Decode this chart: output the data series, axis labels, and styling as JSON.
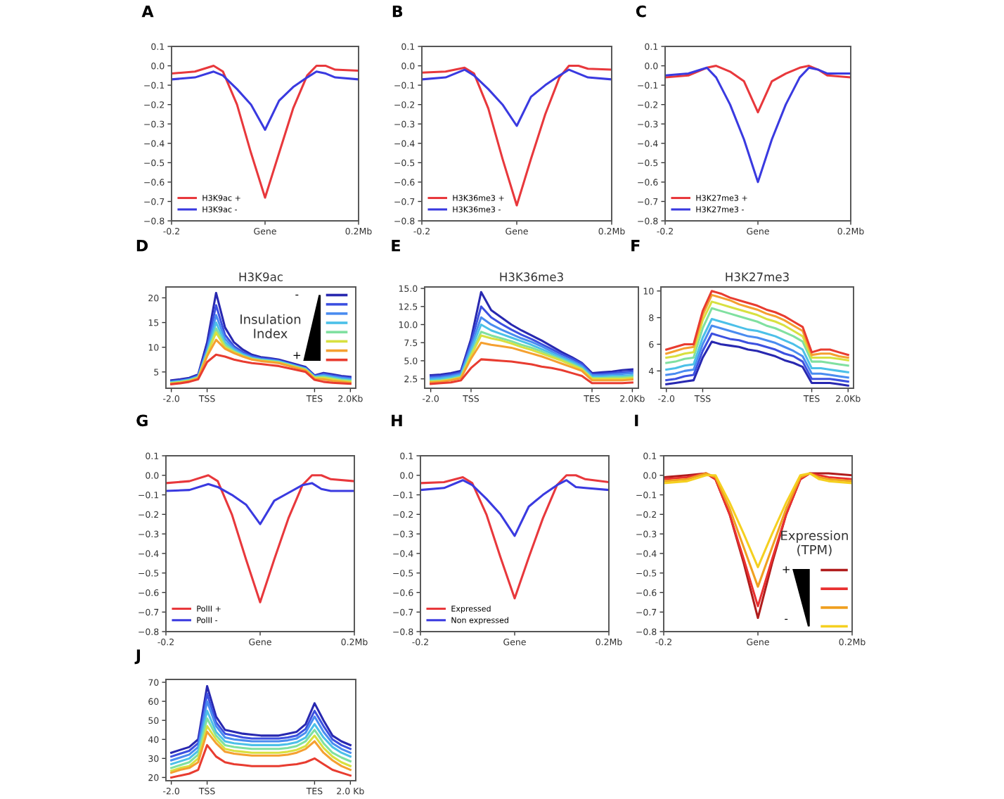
{
  "chart_data": [
    {
      "type": "line",
      "annotations": [
        "A"
      ],
      "legend": "lower left",
      "xlim": [
        -0.2,
        0.2
      ],
      "xticks": [
        {
          "value": -0.2,
          "label": "-0.2"
        },
        {
          "value": 0,
          "label": "Gene"
        },
        {
          "value": 0.2,
          "label": "0.2Mb"
        }
      ],
      "ylim": [
        -0.8,
        0.1
      ],
      "yticks": [
        {
          "value": 0.1,
          "label": "0.1"
        },
        {
          "value": 0,
          "label": "0.0"
        },
        {
          "value": -0.1,
          "label": "−0.1"
        },
        {
          "value": -0.2,
          "label": "−0.2"
        },
        {
          "value": -0.3,
          "label": "−0.3"
        },
        {
          "value": -0.4,
          "label": "−0.4"
        },
        {
          "value": -0.5,
          "label": "−0.5"
        },
        {
          "value": -0.6,
          "label": "−0.6"
        },
        {
          "value": -0.7,
          "label": "−0.7"
        },
        {
          "value": -0.8,
          "label": "−0.8"
        }
      ],
      "x": [
        -0.2,
        -0.15,
        -0.11,
        -0.09,
        -0.06,
        -0.03,
        0,
        0.03,
        0.06,
        0.09,
        0.11,
        0.13,
        0.15,
        0.2
      ],
      "series": [
        {
          "name": "H3K9ac +",
          "color": "#e8383c",
          "values": [
            -0.04,
            -0.03,
            0.0,
            -0.03,
            -0.2,
            -0.45,
            -0.68,
            -0.45,
            -0.22,
            -0.05,
            0.0,
            0.0,
            -0.02,
            -0.025
          ]
        },
        {
          "name": "H3K9ac -",
          "color": "#3a3ae0",
          "values": [
            -0.07,
            -0.06,
            -0.03,
            -0.05,
            -0.12,
            -0.2,
            -0.33,
            -0.18,
            -0.11,
            -0.06,
            -0.03,
            -0.04,
            -0.06,
            -0.07
          ]
        }
      ]
    },
    {
      "type": "line",
      "annotations": [
        "B"
      ],
      "legend": "lower left",
      "xlim": [
        -0.2,
        0.2
      ],
      "xticks": [
        {
          "value": -0.2,
          "label": "-0.2"
        },
        {
          "value": 0,
          "label": "Gene"
        },
        {
          "value": 0.2,
          "label": "0.2Mb"
        }
      ],
      "ylim": [
        -0.8,
        0.1
      ],
      "yticks": [
        {
          "value": 0.1,
          "label": "0.1"
        },
        {
          "value": 0,
          "label": "0.0"
        },
        {
          "value": -0.1,
          "label": "−0.1"
        },
        {
          "value": -0.2,
          "label": "−0.2"
        },
        {
          "value": -0.3,
          "label": "−0.3"
        },
        {
          "value": -0.4,
          "label": "−0.4"
        },
        {
          "value": -0.5,
          "label": "−0.5"
        },
        {
          "value": -0.6,
          "label": "−0.6"
        },
        {
          "value": -0.7,
          "label": "−0.7"
        },
        {
          "value": -0.8,
          "label": "−0.8"
        }
      ],
      "x": [
        -0.2,
        -0.15,
        -0.11,
        -0.09,
        -0.06,
        -0.03,
        0,
        0.03,
        0.06,
        0.09,
        0.11,
        0.13,
        0.15,
        0.2
      ],
      "series": [
        {
          "name": "H3K36me3 +",
          "color": "#e8383c",
          "values": [
            -0.035,
            -0.03,
            -0.01,
            -0.04,
            -0.22,
            -0.48,
            -0.72,
            -0.48,
            -0.25,
            -0.06,
            0.0,
            0.0,
            -0.015,
            -0.02
          ]
        },
        {
          "name": "H3K36me3 -",
          "color": "#3a3ae0",
          "values": [
            -0.07,
            -0.06,
            -0.02,
            -0.05,
            -0.12,
            -0.2,
            -0.31,
            -0.16,
            -0.1,
            -0.05,
            -0.02,
            -0.04,
            -0.06,
            -0.07
          ]
        }
      ]
    },
    {
      "type": "line",
      "annotations": [
        "C"
      ],
      "legend": "lower left",
      "xlim": [
        -0.2,
        0.2
      ],
      "xticks": [
        {
          "value": -0.2,
          "label": "-0.2"
        },
        {
          "value": 0,
          "label": "Gene"
        },
        {
          "value": 0.2,
          "label": "0.2Mb"
        }
      ],
      "ylim": [
        -0.8,
        0.1
      ],
      "yticks": [
        {
          "value": 0.1,
          "label": "0.1"
        },
        {
          "value": 0,
          "label": "0.0"
        },
        {
          "value": -0.1,
          "label": "−0.1"
        },
        {
          "value": -0.2,
          "label": "−0.2"
        },
        {
          "value": -0.3,
          "label": "−0.3"
        },
        {
          "value": -0.4,
          "label": "−0.4"
        },
        {
          "value": -0.5,
          "label": "−0.5"
        },
        {
          "value": -0.6,
          "label": "−0.6"
        },
        {
          "value": -0.7,
          "label": "−0.7"
        },
        {
          "value": -0.8,
          "label": "−0.8"
        }
      ],
      "x": [
        -0.2,
        -0.15,
        -0.11,
        -0.09,
        -0.06,
        -0.03,
        0,
        0.03,
        0.06,
        0.09,
        0.11,
        0.13,
        0.15,
        0.2
      ],
      "series": [
        {
          "name": "H3K27me3 +",
          "color": "#e8383c",
          "values": [
            -0.06,
            -0.05,
            -0.01,
            0.0,
            -0.03,
            -0.08,
            -0.24,
            -0.08,
            -0.04,
            -0.01,
            0.0,
            -0.02,
            -0.05,
            -0.06
          ]
        },
        {
          "name": "H3K27me3 -",
          "color": "#3a3ae0",
          "values": [
            -0.05,
            -0.04,
            -0.01,
            -0.06,
            -0.2,
            -0.38,
            -0.6,
            -0.38,
            -0.2,
            -0.06,
            -0.01,
            -0.02,
            -0.04,
            -0.04
          ]
        }
      ]
    },
    {
      "type": "line",
      "title": "H3K9ac",
      "annotations": [
        "D",
        "-",
        "+"
      ],
      "legend": "top right",
      "legend_title": "Insulation\nIndex",
      "ylim": [
        1.7,
        22.2
      ],
      "yticks": [
        5,
        10,
        15,
        20
      ],
      "categories": [
        "-2.0",
        null,
        null,
        null,
        "TSS",
        null,
        null,
        null,
        null,
        null,
        null,
        null,
        null,
        null,
        null,
        null,
        "TES",
        null,
        null,
        null,
        "2.0Kb"
      ],
      "series": [
        {
          "color": "#2828b0",
          "values": [
            3.3,
            3.5,
            3.8,
            4.5,
            11,
            21,
            14,
            11,
            9.5,
            8.5,
            8,
            7.8,
            7.5,
            7,
            6.5,
            6,
            4.3,
            4.8,
            4.5,
            4.2,
            4.0
          ]
        },
        {
          "color": "#3c50e0",
          "values": [
            3.1,
            3.3,
            3.6,
            4.3,
            10,
            18.5,
            12.5,
            10.2,
            9,
            8.2,
            7.8,
            7.6,
            7.3,
            6.8,
            6.3,
            5.8,
            4.2,
            4.6,
            4.3,
            4,
            3.8
          ]
        },
        {
          "color": "#4a8cf0",
          "values": [
            3.0,
            3.2,
            3.5,
            4.1,
            9.5,
            16.5,
            11.7,
            9.8,
            8.7,
            8,
            7.6,
            7.4,
            7.2,
            6.7,
            6.2,
            5.7,
            4.1,
            4.4,
            4.1,
            3.8,
            3.6
          ]
        },
        {
          "color": "#4cc0e8",
          "values": [
            2.9,
            3.1,
            3.4,
            4,
            9,
            15,
            11,
            9.5,
            8.5,
            7.8,
            7.5,
            7.3,
            7.1,
            6.6,
            6.1,
            5.6,
            4,
            4.2,
            3.9,
            3.6,
            3.4
          ]
        },
        {
          "color": "#80e0a0",
          "values": [
            2.8,
            3,
            3.3,
            3.9,
            8.7,
            13.8,
            10.5,
            9.2,
            8.3,
            7.7,
            7.4,
            7.2,
            7,
            6.5,
            6,
            5.5,
            3.9,
            4,
            3.7,
            3.4,
            3.2
          ]
        },
        {
          "color": "#d8e040",
          "values": [
            2.7,
            2.9,
            3.2,
            3.8,
            8.5,
            13,
            10,
            9,
            8.2,
            7.6,
            7.3,
            7.1,
            6.9,
            6.4,
            5.9,
            5.4,
            3.8,
            3.8,
            3.5,
            3.2,
            3.0
          ]
        },
        {
          "color": "#f5a030",
          "values": [
            2.6,
            2.8,
            3.1,
            3.7,
            8.2,
            11.5,
            9.7,
            8.8,
            8.1,
            7.5,
            7.2,
            7,
            6.8,
            6.3,
            5.8,
            5.3,
            3.6,
            3.5,
            3.2,
            3,
            2.8
          ]
        },
        {
          "color": "#e83c30",
          "values": [
            2.5,
            2.7,
            3,
            3.5,
            7,
            8.5,
            8.1,
            7.5,
            7.1,
            6.8,
            6.6,
            6.4,
            6.2,
            5.8,
            5.4,
            5,
            3.4,
            3,
            2.8,
            2.7,
            2.6
          ]
        }
      ]
    },
    {
      "type": "line",
      "title": "H3K36me3",
      "annotations": [
        "E"
      ],
      "ylim": [
        1.2,
        15.2
      ],
      "yticks": [
        {
          "value": 2.5,
          "label": "2.5"
        },
        {
          "value": 5,
          "label": "5.0"
        },
        {
          "value": 7.5,
          "label": "7.5"
        },
        {
          "value": 10,
          "label": "10.0"
        },
        {
          "value": 12.5,
          "label": "12.5"
        },
        {
          "value": 15,
          "label": "15.0"
        }
      ],
      "categories": [
        "-2.0",
        null,
        null,
        null,
        "TSS",
        null,
        null,
        null,
        null,
        null,
        null,
        null,
        null,
        null,
        null,
        null,
        "TES",
        null,
        null,
        null,
        "2.0Kb"
      ],
      "series": [
        {
          "color": "#2828b0",
          "values": [
            3,
            3.1,
            3.3,
            3.6,
            8,
            14.5,
            12,
            11,
            10,
            9.2,
            8.5,
            7.8,
            7,
            6.2,
            5.5,
            4.7,
            3.3,
            3.4,
            3.5,
            3.7,
            3.8
          ]
        },
        {
          "color": "#3c50e0",
          "values": [
            2.8,
            2.9,
            3.1,
            3.4,
            7.5,
            12.5,
            11,
            10.1,
            9.3,
            8.6,
            8,
            7.3,
            6.6,
            5.9,
            5.3,
            4.6,
            3.1,
            3.2,
            3.3,
            3.4,
            3.5
          ]
        },
        {
          "color": "#4a8cf0",
          "values": [
            2.6,
            2.7,
            2.9,
            3.2,
            7,
            11,
            10,
            9.3,
            8.7,
            8.1,
            7.6,
            7,
            6.3,
            5.6,
            5,
            4.3,
            3,
            3,
            3.1,
            3.2,
            3.3
          ]
        },
        {
          "color": "#4cc0e8",
          "values": [
            2.4,
            2.5,
            2.7,
            3,
            6.5,
            10,
            9.2,
            8.7,
            8.2,
            7.7,
            7.2,
            6.6,
            6,
            5.4,
            4.8,
            4.1,
            2.8,
            2.8,
            2.9,
            2.9,
            3
          ]
        },
        {
          "color": "#80e0a0",
          "values": [
            2.2,
            2.3,
            2.5,
            2.8,
            6,
            9,
            8.5,
            8.1,
            7.7,
            7.2,
            6.8,
            6.3,
            5.7,
            5.2,
            4.6,
            3.9,
            2.6,
            2.6,
            2.7,
            2.7,
            2.8
          ]
        },
        {
          "color": "#d8e040",
          "values": [
            2.1,
            2.2,
            2.4,
            2.7,
            5.7,
            8.5,
            8.1,
            7.8,
            7.4,
            6.9,
            6.5,
            6,
            5.5,
            5,
            4.4,
            3.8,
            2.5,
            2.5,
            2.5,
            2.5,
            2.6
          ]
        },
        {
          "color": "#f5a030",
          "values": [
            2,
            2.1,
            2.3,
            2.6,
            5.3,
            7.5,
            7.2,
            7,
            6.8,
            6.4,
            6,
            5.6,
            5.1,
            4.6,
            4.1,
            3.6,
            2.3,
            2.3,
            2.3,
            2.3,
            2.4
          ]
        },
        {
          "color": "#e83c30",
          "values": [
            1.8,
            1.9,
            2,
            2.3,
            4,
            5.2,
            5.1,
            5,
            4.9,
            4.7,
            4.5,
            4.2,
            4,
            3.7,
            3.3,
            2.9,
            1.9,
            1.9,
            1.9,
            1.9,
            2
          ]
        }
      ]
    },
    {
      "type": "line",
      "title": "H3K27me3",
      "annotations": [
        "F"
      ],
      "ylim": [
        2.7,
        10.3
      ],
      "yticks": [
        4,
        6,
        8,
        10
      ],
      "categories": [
        "-2.0",
        null,
        null,
        null,
        "TSS",
        null,
        null,
        null,
        null,
        null,
        null,
        null,
        null,
        null,
        null,
        null,
        "TES",
        null,
        null,
        null,
        "2.0Kb"
      ],
      "series": [
        {
          "color": "#2828b0",
          "values": [
            3,
            3.1,
            3.2,
            3.3,
            5,
            6.2,
            6,
            5.9,
            5.8,
            5.6,
            5.5,
            5.3,
            5.1,
            4.8,
            4.6,
            4.3,
            3.1,
            3.1,
            3.1,
            3,
            2.9
          ]
        },
        {
          "color": "#3c50e0",
          "values": [
            3.3,
            3.4,
            3.6,
            3.7,
            5.5,
            6.8,
            6.6,
            6.4,
            6.3,
            6.1,
            6,
            5.8,
            5.6,
            5.3,
            5.1,
            4.7,
            3.4,
            3.4,
            3.4,
            3.3,
            3.2
          ]
        },
        {
          "color": "#4a8cf0",
          "values": [
            3.7,
            3.8,
            4,
            4.1,
            6,
            7.4,
            7.2,
            7,
            6.8,
            6.6,
            6.5,
            6.3,
            6.1,
            5.8,
            5.5,
            5.1,
            3.8,
            3.8,
            3.7,
            3.6,
            3.5
          ]
        },
        {
          "color": "#4cc0e8",
          "values": [
            4.1,
            4.2,
            4.4,
            4.5,
            6.5,
            7.9,
            7.7,
            7.5,
            7.3,
            7.1,
            7,
            6.8,
            6.6,
            6.3,
            6,
            5.6,
            4.2,
            4.2,
            4.1,
            4,
            3.9
          ]
        },
        {
          "color": "#80e0a0",
          "values": [
            4.6,
            4.7,
            4.9,
            5,
            7.2,
            8.7,
            8.5,
            8.3,
            8.1,
            7.9,
            7.7,
            7.4,
            7.2,
            6.9,
            6.6,
            6.2,
            4.7,
            4.7,
            4.6,
            4.5,
            4.4
          ]
        },
        {
          "color": "#d8e040",
          "values": [
            5,
            5.1,
            5.3,
            5.4,
            7.8,
            9.2,
            9,
            8.8,
            8.6,
            8.4,
            8.2,
            7.9,
            7.7,
            7.4,
            7,
            6.6,
            5,
            5,
            5,
            4.9,
            4.8
          ]
        },
        {
          "color": "#f5a030",
          "values": [
            5.3,
            5.5,
            5.7,
            5.8,
            8.2,
            9.7,
            9.5,
            9.3,
            9,
            8.8,
            8.6,
            8.3,
            8.1,
            7.8,
            7.4,
            7,
            5.2,
            5.3,
            5.3,
            5.1,
            5
          ]
        },
        {
          "color": "#e83c30",
          "values": [
            5.6,
            5.8,
            6,
            6,
            8.5,
            10,
            9.8,
            9.5,
            9.3,
            9.1,
            8.9,
            8.6,
            8.4,
            8.1,
            7.7,
            7.3,
            5.4,
            5.6,
            5.6,
            5.4,
            5.2
          ]
        }
      ]
    },
    {
      "type": "line",
      "annotations": [
        "G"
      ],
      "legend": "lower left",
      "xlim": [
        -0.2,
        0.2
      ],
      "xticks": [
        {
          "value": -0.2,
          "label": "-0.2"
        },
        {
          "value": 0,
          "label": "Gene"
        },
        {
          "value": 0.2,
          "label": "0.2Mb"
        }
      ],
      "ylim": [
        -0.8,
        0.1
      ],
      "yticks": [
        {
          "value": 0.1,
          "label": "0.1"
        },
        {
          "value": 0,
          "label": "0.0"
        },
        {
          "value": -0.1,
          "label": "−0.1"
        },
        {
          "value": -0.2,
          "label": "−0.2"
        },
        {
          "value": -0.3,
          "label": "−0.3"
        },
        {
          "value": -0.4,
          "label": "−0.4"
        },
        {
          "value": -0.5,
          "label": "−0.5"
        },
        {
          "value": -0.6,
          "label": "−0.6"
        },
        {
          "value": -0.7,
          "label": "−0.7"
        },
        {
          "value": -0.8,
          "label": "−0.8"
        }
      ],
      "x": [
        -0.2,
        -0.15,
        -0.11,
        -0.09,
        -0.06,
        -0.03,
        0,
        0.03,
        0.06,
        0.09,
        0.11,
        0.13,
        0.15,
        0.2
      ],
      "series": [
        {
          "name": "PolII +",
          "color": "#e8383c",
          "values": [
            -0.04,
            -0.03,
            0.0,
            -0.03,
            -0.2,
            -0.43,
            -0.65,
            -0.43,
            -0.22,
            -0.05,
            0.0,
            0.0,
            -0.02,
            -0.03
          ]
        },
        {
          "name": "PolII -",
          "color": "#3a3ae0",
          "values": [
            -0.08,
            -0.075,
            -0.045,
            -0.06,
            -0.1,
            -0.15,
            -0.25,
            -0.13,
            -0.09,
            -0.05,
            -0.04,
            -0.07,
            -0.08,
            -0.08
          ]
        }
      ]
    },
    {
      "type": "line",
      "annotations": [
        "H"
      ],
      "legend": "lower left",
      "xlim": [
        -0.2,
        0.2
      ],
      "xticks": [
        {
          "value": -0.2,
          "label": "-0.2"
        },
        {
          "value": 0,
          "label": "Gene"
        },
        {
          "value": 0.2,
          "label": "0.2Mb"
        }
      ],
      "ylim": [
        -0.8,
        0.1
      ],
      "yticks": [
        {
          "value": 0.1,
          "label": "0.1"
        },
        {
          "value": 0,
          "label": "0.0"
        },
        {
          "value": -0.1,
          "label": "−0.1"
        },
        {
          "value": -0.2,
          "label": "−0.2"
        },
        {
          "value": -0.3,
          "label": "−0.3"
        },
        {
          "value": -0.4,
          "label": "−0.4"
        },
        {
          "value": -0.5,
          "label": "−0.5"
        },
        {
          "value": -0.6,
          "label": "−0.6"
        },
        {
          "value": -0.7,
          "label": "−0.7"
        },
        {
          "value": -0.8,
          "label": "−0.8"
        }
      ],
      "x": [
        -0.2,
        -0.15,
        -0.11,
        -0.09,
        -0.06,
        -0.03,
        0,
        0.03,
        0.06,
        0.09,
        0.11,
        0.13,
        0.15,
        0.2
      ],
      "series": [
        {
          "name": "Expressed",
          "color": "#e8383c",
          "values": [
            -0.04,
            -0.035,
            -0.01,
            -0.04,
            -0.2,
            -0.42,
            -0.63,
            -0.42,
            -0.22,
            -0.05,
            0.0,
            0.0,
            -0.02,
            -0.035
          ]
        },
        {
          "name": "Non expressed",
          "color": "#3a3ae0",
          "values": [
            -0.075,
            -0.065,
            -0.025,
            -0.05,
            -0.12,
            -0.2,
            -0.31,
            -0.16,
            -0.1,
            -0.05,
            -0.025,
            -0.06,
            -0.065,
            -0.075
          ]
        }
      ]
    },
    {
      "type": "line",
      "annotations": [
        "I",
        "+",
        "-"
      ],
      "legend": "bottom right",
      "legend_title": "Expression\n(TPM)",
      "xlim": [
        -0.2,
        0.2
      ],
      "xticks": [
        {
          "value": -0.2,
          "label": "-0.2"
        },
        {
          "value": 0,
          "label": "Gene"
        },
        {
          "value": 0.2,
          "label": "0.2Mb"
        }
      ],
      "ylim": [
        -0.8,
        0.1
      ],
      "yticks": [
        {
          "value": 0.1,
          "label": "0.1"
        },
        {
          "value": 0,
          "label": "0.0"
        },
        {
          "value": -0.1,
          "label": "−0.1"
        },
        {
          "value": -0.2,
          "label": "−0.2"
        },
        {
          "value": -0.3,
          "label": "−0.3"
        },
        {
          "value": -0.4,
          "label": "−0.4"
        },
        {
          "value": -0.5,
          "label": "−0.5"
        },
        {
          "value": -0.6,
          "label": "−0.6"
        },
        {
          "value": -0.7,
          "label": "−0.7"
        },
        {
          "value": -0.8,
          "label": "−0.8"
        }
      ],
      "x": [
        -0.2,
        -0.15,
        -0.11,
        -0.09,
        -0.06,
        -0.03,
        0,
        0.03,
        0.06,
        0.09,
        0.11,
        0.13,
        0.15,
        0.2
      ],
      "series": [
        {
          "color": "#b01c1c",
          "values": [
            -0.01,
            0.0,
            0.01,
            -0.02,
            -0.2,
            -0.45,
            -0.73,
            -0.45,
            -0.2,
            -0.02,
            0.01,
            0.01,
            0.01,
            0.0
          ]
        },
        {
          "color": "#e83030",
          "values": [
            -0.02,
            -0.01,
            0.01,
            -0.02,
            -0.2,
            -0.43,
            -0.67,
            -0.43,
            -0.2,
            -0.02,
            0.01,
            0.0,
            -0.01,
            -0.02
          ]
        },
        {
          "color": "#f0a020",
          "values": [
            -0.03,
            -0.02,
            0.01,
            -0.01,
            -0.17,
            -0.37,
            -0.57,
            -0.37,
            -0.17,
            -0.01,
            0.01,
            -0.01,
            -0.02,
            -0.03
          ]
        },
        {
          "color": "#f5d020",
          "values": [
            -0.04,
            -0.03,
            0.0,
            0.0,
            -0.14,
            -0.3,
            -0.47,
            -0.3,
            -0.14,
            0.0,
            0.01,
            -0.02,
            -0.03,
            -0.04
          ]
        }
      ]
    },
    {
      "type": "line",
      "annotations": [
        "J"
      ],
      "ylim": [
        18.3,
        71.5
      ],
      "yticks": [
        20,
        30,
        40,
        50,
        60,
        70
      ],
      "categories": [
        "-2.0",
        null,
        null,
        null,
        "TSS",
        null,
        null,
        null,
        null,
        null,
        null,
        null,
        null,
        null,
        null,
        null,
        "TES",
        null,
        null,
        null,
        "2.0 Kb"
      ],
      "series": [
        {
          "color": "#2828b0",
          "values": [
            33,
            34.5,
            36,
            40,
            68,
            52,
            45,
            44,
            43,
            42.5,
            42,
            42,
            42,
            43,
            44,
            48,
            59,
            50,
            42,
            39,
            37
          ]
        },
        {
          "color": "#3c50e0",
          "values": [
            31,
            32.5,
            34,
            38,
            64,
            49,
            43,
            42,
            41,
            40.5,
            40.5,
            40.5,
            40.5,
            41,
            42,
            45.5,
            55,
            47,
            40,
            37,
            35
          ]
        },
        {
          "color": "#4a8cf0",
          "values": [
            29,
            30.5,
            32,
            36,
            60,
            47,
            41,
            40,
            39.5,
            39,
            39,
            39,
            39,
            39.5,
            40.5,
            43.5,
            52,
            44,
            38,
            35,
            33
          ]
        },
        {
          "color": "#4cc0e8",
          "values": [
            27,
            28.5,
            30,
            34,
            55,
            44,
            39,
            38,
            37.5,
            37,
            37,
            37,
            37,
            37.5,
            38.5,
            41,
            48,
            41,
            36,
            33,
            31
          ]
        },
        {
          "color": "#80e0a0",
          "values": [
            25,
            26.5,
            28,
            32,
            51,
            42,
            37,
            36,
            35.5,
            35,
            35,
            35,
            35,
            35.5,
            36.5,
            39,
            45,
            38,
            33,
            30.5,
            28.5
          ]
        },
        {
          "color": "#d8e040",
          "values": [
            23.5,
            25,
            26,
            30,
            47,
            40,
            35,
            34,
            33.5,
            33,
            33,
            33,
            33,
            33.5,
            34.5,
            36.5,
            42,
            35.5,
            31,
            28,
            26
          ]
        },
        {
          "color": "#f5a030",
          "values": [
            22.5,
            24,
            25,
            28,
            44,
            38,
            33.5,
            32.5,
            32,
            31.5,
            31.5,
            31.5,
            31.5,
            32,
            33,
            35,
            39,
            33,
            29,
            26,
            24
          ]
        },
        {
          "color": "#e83c30",
          "values": [
            20,
            21,
            22,
            24,
            37,
            31,
            28,
            27,
            26.5,
            26,
            26,
            26,
            26,
            26.5,
            27,
            28,
            30,
            27,
            24,
            22.5,
            21
          ]
        }
      ]
    }
  ]
}
